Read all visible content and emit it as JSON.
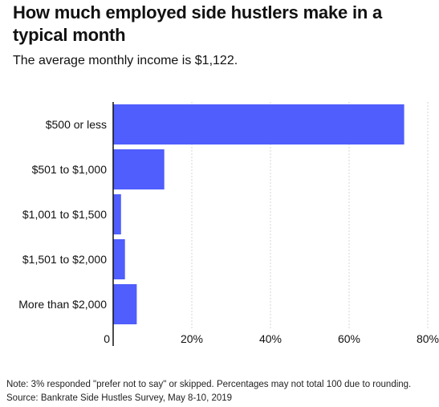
{
  "chart_data": {
    "type": "bar",
    "orientation": "horizontal",
    "title": "How much employed side hustlers make in a typical month",
    "subtitle": "The average monthly income is $1,122.",
    "categories": [
      "$500 or less",
      "$501 to $1,000",
      "$1,001 to $1,500",
      "$1,501 to $2,000",
      "More than $2,000"
    ],
    "values": [
      74,
      13,
      2,
      3,
      6
    ],
    "unit": "%",
    "xlim": [
      0,
      80
    ],
    "x_ticks": [
      "0",
      "20%",
      "40%",
      "60%",
      "80%"
    ],
    "x_tick_values": [
      0,
      20,
      40,
      60,
      80
    ],
    "grid": "vertical dashed",
    "bar_color": "#4f5efc",
    "note": "Note: 3% responded \"prefer not to say\" or skipped. Percentages may not total 100 due to rounding.",
    "source": "Source: Bankrate Side Hustles Survey, May 8-10, 2019"
  }
}
